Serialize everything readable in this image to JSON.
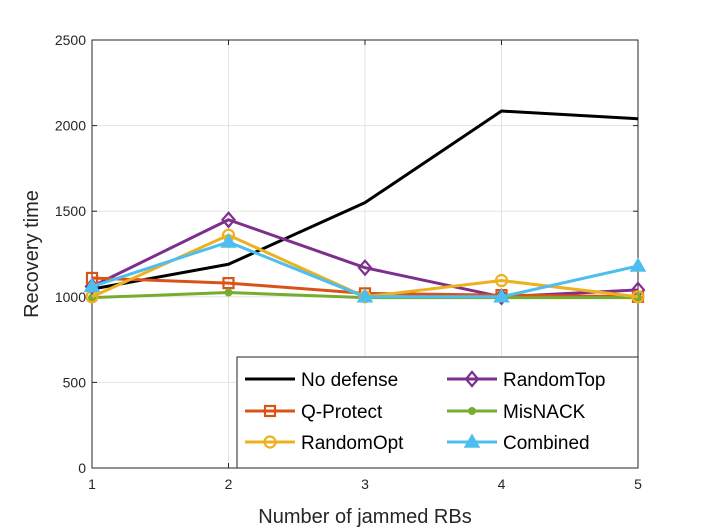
{
  "chart_data": {
    "type": "line",
    "title": "",
    "xlabel": "Number of jammed RBs",
    "ylabel": "Recovery time",
    "x": [
      1,
      2,
      3,
      4,
      5
    ],
    "xlim": [
      1,
      5
    ],
    "ylim": [
      0,
      2500
    ],
    "xticks": [
      "1",
      "2",
      "3",
      "4",
      "5"
    ],
    "yticks": [
      "0",
      "500",
      "1000",
      "1500",
      "2000",
      "2500"
    ],
    "grid": true,
    "legend_position": "bottom-right",
    "series": [
      {
        "name": "No defense",
        "color": "#000000",
        "marker": "none",
        "values": [
          1045,
          1190,
          1550,
          2085,
          2040
        ]
      },
      {
        "name": "RandomTop",
        "color": "#7E2F8E",
        "marker": "diamond",
        "values": [
          1060,
          1450,
          1170,
          1000,
          1040
        ]
      },
      {
        "name": "Q-Protect",
        "color": "#D95319",
        "marker": "square",
        "values": [
          1110,
          1080,
          1020,
          1010,
          1000
        ]
      },
      {
        "name": "MisNACK",
        "color": "#77AC30",
        "marker": "circle-filled",
        "values": [
          995,
          1025,
          995,
          995,
          995
        ]
      },
      {
        "name": "RandomOpt",
        "color": "#EDB120",
        "marker": "circle",
        "values": [
          1000,
          1360,
          1000,
          1095,
          1000
        ]
      },
      {
        "name": "Combined",
        "color": "#4DBEEE",
        "marker": "triangle",
        "values": [
          1060,
          1320,
          1000,
          1000,
          1180
        ]
      }
    ]
  }
}
